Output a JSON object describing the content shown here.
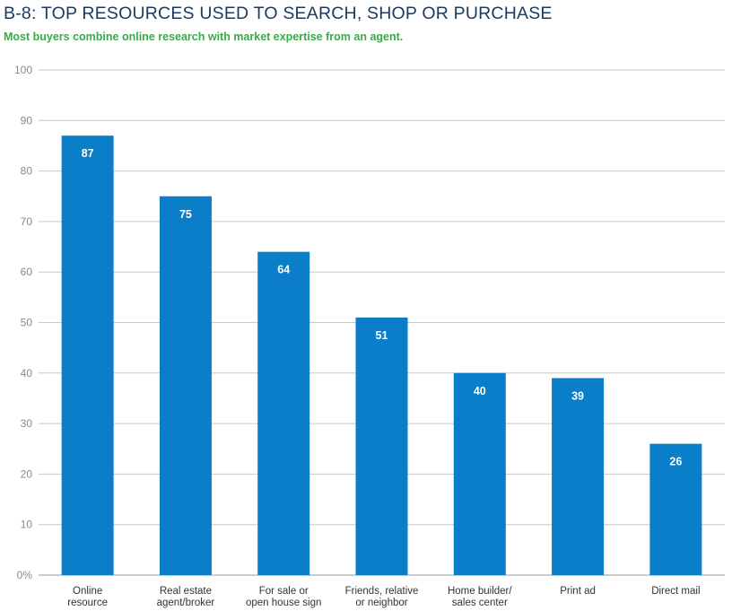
{
  "chart_data": {
    "type": "bar",
    "title": "B-8: TOP RESOURCES USED TO SEARCH, SHOP OR PURCHASE",
    "subtitle": "Most buyers combine online research with market expertise from an agent.",
    "xlabel": "",
    "ylabel": "",
    "ylim": [
      0,
      100
    ],
    "yticks": [
      0,
      10,
      20,
      30,
      40,
      50,
      60,
      70,
      80,
      90,
      100
    ],
    "ytick_labels": [
      "0%",
      "10",
      "20",
      "30",
      "40",
      "50",
      "60",
      "70",
      "80",
      "90",
      "100"
    ],
    "grid": true,
    "categories": [
      [
        "Online",
        "resource"
      ],
      [
        "Real estate",
        "agent/broker"
      ],
      [
        "For sale or",
        "open house sign"
      ],
      [
        "Friends, relative",
        "or neighbor"
      ],
      [
        "Home builder/",
        "sales center"
      ],
      [
        "Print ad"
      ],
      [
        "Direct mail"
      ]
    ],
    "values": [
      87,
      75,
      64,
      51,
      40,
      39,
      26
    ],
    "bar_color": "#0a7ec8"
  }
}
